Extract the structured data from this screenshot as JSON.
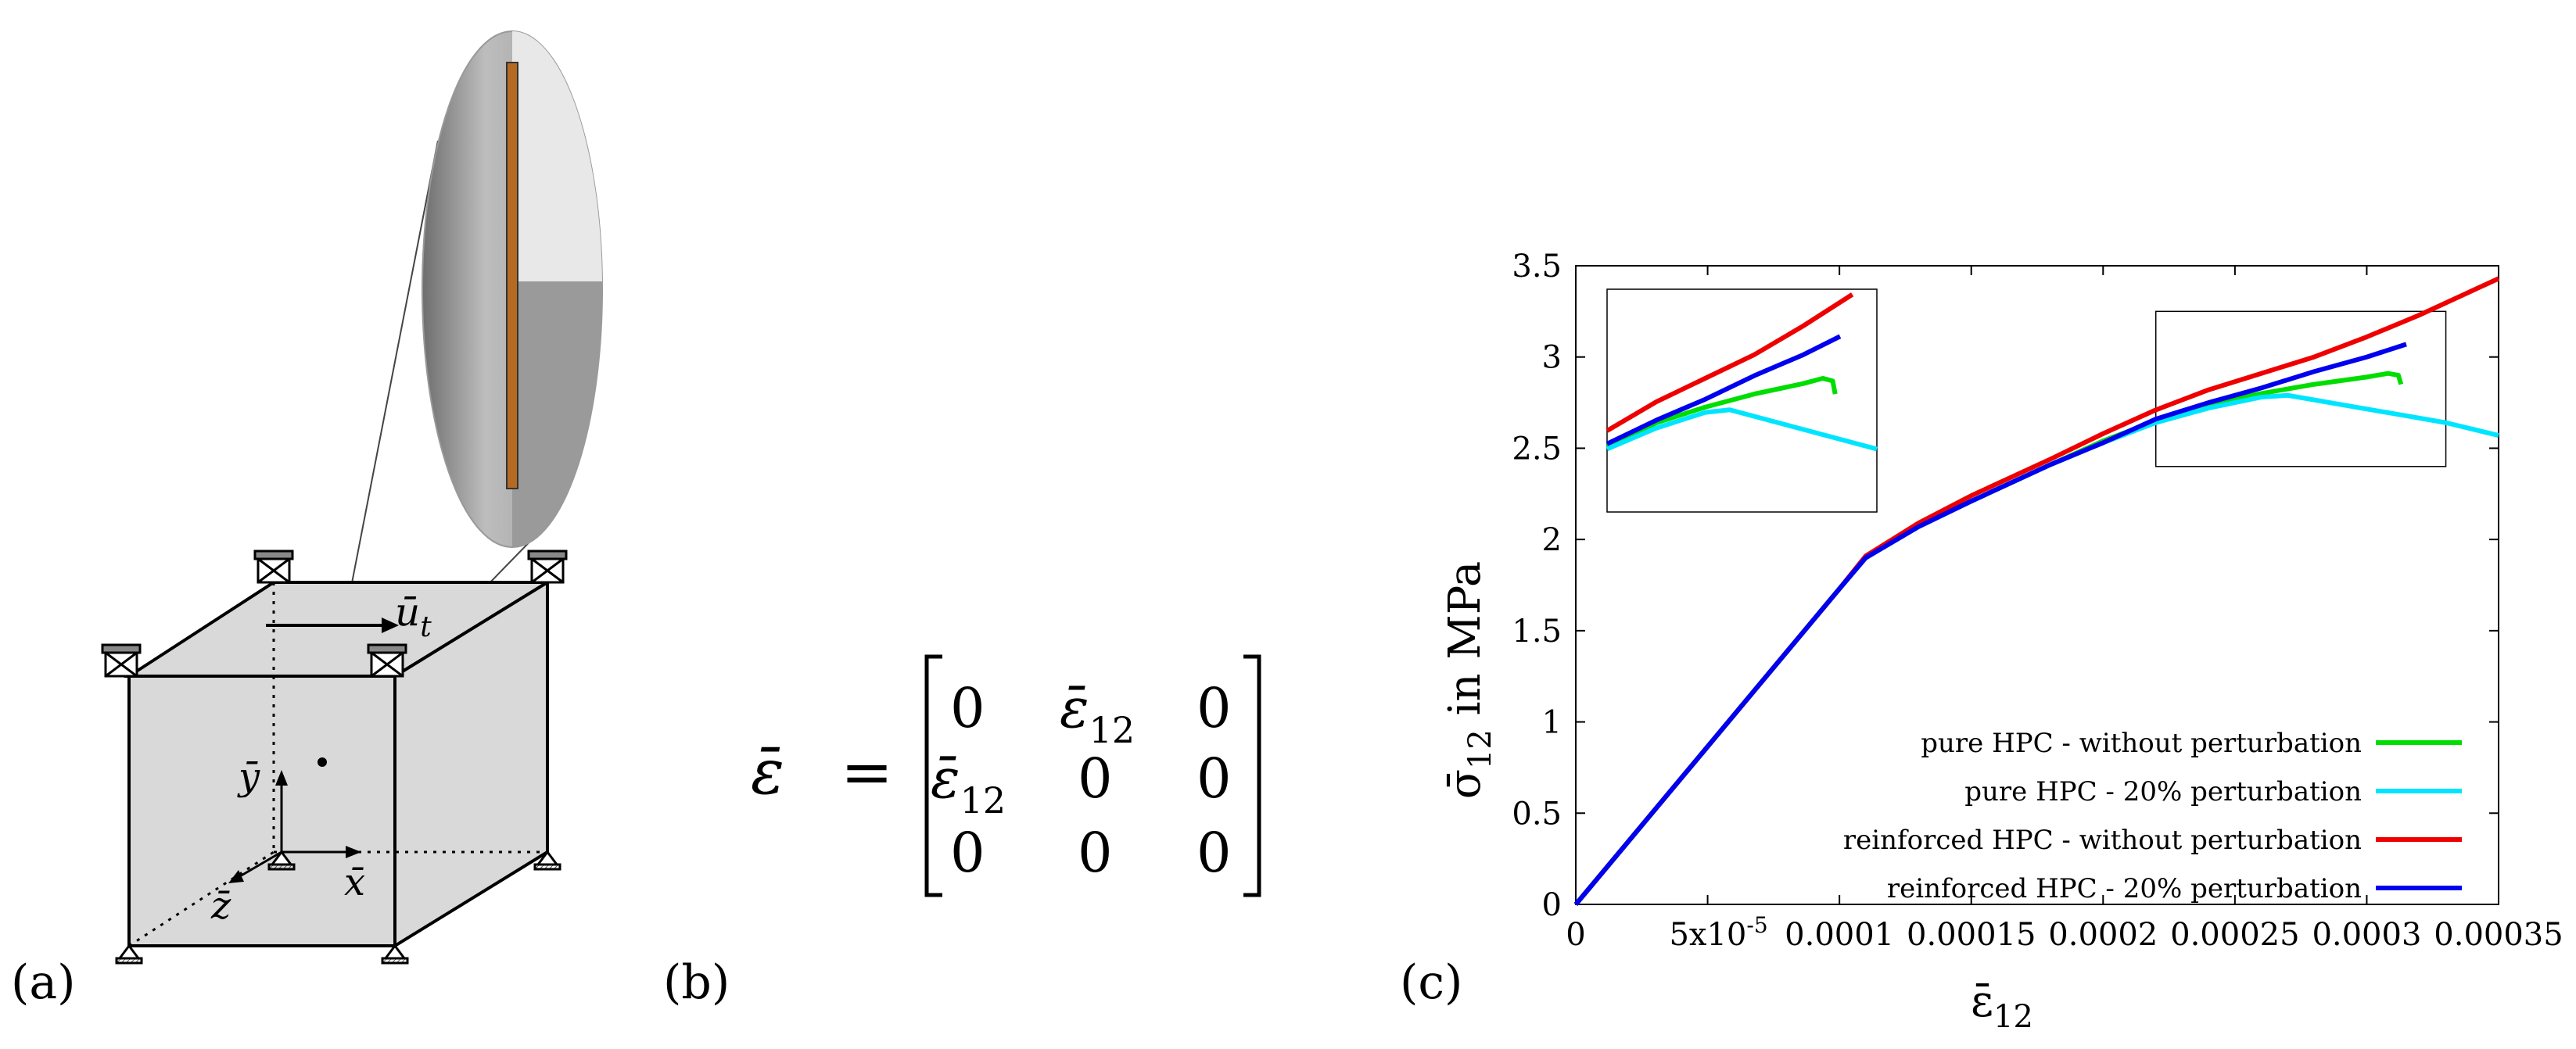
{
  "panels": {
    "a": {
      "label": "(a)",
      "ut_label": "ū",
      "ut_sub": "t",
      "x_label": "x̄",
      "y_label": "ȳ",
      "z_label": "z̄"
    },
    "b": {
      "label": "(b)",
      "lhs": "ε̄",
      "equals": "=",
      "matrix": [
        [
          "0",
          "ε̄",
          "0"
        ],
        [
          "ε̄",
          "0",
          "0"
        ],
        [
          "0",
          "0",
          "0"
        ]
      ],
      "sub": "12"
    },
    "c": {
      "label": "(c)"
    }
  },
  "chart_data": {
    "type": "line",
    "ylabel": "σ̄",
    "ylabel_sub": "12",
    "ylabel_rest": " in MPa",
    "xlabel": "ε̄",
    "xlabel_sub": "12",
    "xlim": [
      0,
      0.00035
    ],
    "ylim": [
      0,
      3.5
    ],
    "xticks": [
      {
        "v": 0,
        "label": "0"
      },
      {
        "v": 5e-05,
        "label": "5x10",
        "sup": "-5"
      },
      {
        "v": 0.0001,
        "label": "0.0001"
      },
      {
        "v": 0.00015,
        "label": "0.00015"
      },
      {
        "v": 0.0002,
        "label": "0.0002"
      },
      {
        "v": 0.00025,
        "label": "0.00025"
      },
      {
        "v": 0.0003,
        "label": "0.0003"
      },
      {
        "v": 0.00035,
        "label": "0.00035"
      }
    ],
    "yticks": [
      {
        "v": 0,
        "label": "0"
      },
      {
        "v": 0.5,
        "label": "0.5"
      },
      {
        "v": 1,
        "label": "1"
      },
      {
        "v": 1.5,
        "label": "1.5"
      },
      {
        "v": 2,
        "label": "2"
      },
      {
        "v": 2.5,
        "label": "2.5"
      },
      {
        "v": 3,
        "label": "3"
      },
      {
        "v": 3.5,
        "label": "3.5"
      }
    ],
    "grid": false,
    "legend_position": "bottom-right",
    "zoom_box": {
      "x": [
        0.00022,
        0.00033
      ],
      "y": [
        2.4,
        3.25
      ]
    },
    "inset": {
      "x": [
        0.00022,
        0.00033
      ],
      "y": [
        2.4,
        3.25
      ]
    },
    "series": [
      {
        "name": "pure HPC - without perturbation",
        "color": "#00dd00",
        "x": [
          0,
          0.0001,
          0.00011,
          0.00013,
          0.00015,
          0.00018,
          0.0002,
          0.00022,
          0.00024,
          0.00026,
          0.00028,
          0.0003,
          0.000308,
          0.000312,
          0.000313
        ],
        "y": [
          0,
          1.73,
          1.9,
          2.07,
          2.21,
          2.41,
          2.54,
          2.65,
          2.74,
          2.8,
          2.85,
          2.89,
          2.91,
          2.9,
          2.85
        ]
      },
      {
        "name": "pure HPC - 20% perturbation",
        "color": "#00e5ff",
        "x": [
          0,
          0.0001,
          0.00011,
          0.00013,
          0.00015,
          0.00018,
          0.0002,
          0.00022,
          0.00024,
          0.00026,
          0.00027,
          0.00029,
          0.00031,
          0.00033,
          0.00035
        ],
        "y": [
          0,
          1.73,
          1.9,
          2.07,
          2.21,
          2.41,
          2.53,
          2.64,
          2.72,
          2.78,
          2.79,
          2.74,
          2.69,
          2.64,
          2.57
        ]
      },
      {
        "name": "reinforced HPC - without perturbation",
        "color": "#ee0000",
        "x": [
          0,
          0.0001,
          0.00011,
          0.00013,
          0.00015,
          0.00018,
          0.0002,
          0.00022,
          0.00024,
          0.00026,
          0.00028,
          0.0003,
          0.00032,
          0.00035
        ],
        "y": [
          0,
          1.73,
          1.91,
          2.09,
          2.24,
          2.44,
          2.58,
          2.71,
          2.82,
          2.91,
          3.0,
          3.11,
          3.23,
          3.43
        ]
      },
      {
        "name": "reinforced HPC - 20% perturbation",
        "color": "#0000ee",
        "x": [
          0,
          0.0001,
          0.00011,
          0.00013,
          0.00015,
          0.00018,
          0.0002,
          0.00022,
          0.00024,
          0.00026,
          0.00028,
          0.0003,
          0.000315
        ],
        "y": [
          0,
          1.73,
          1.9,
          2.07,
          2.21,
          2.41,
          2.53,
          2.66,
          2.75,
          2.83,
          2.92,
          3.0,
          3.07
        ]
      }
    ]
  }
}
